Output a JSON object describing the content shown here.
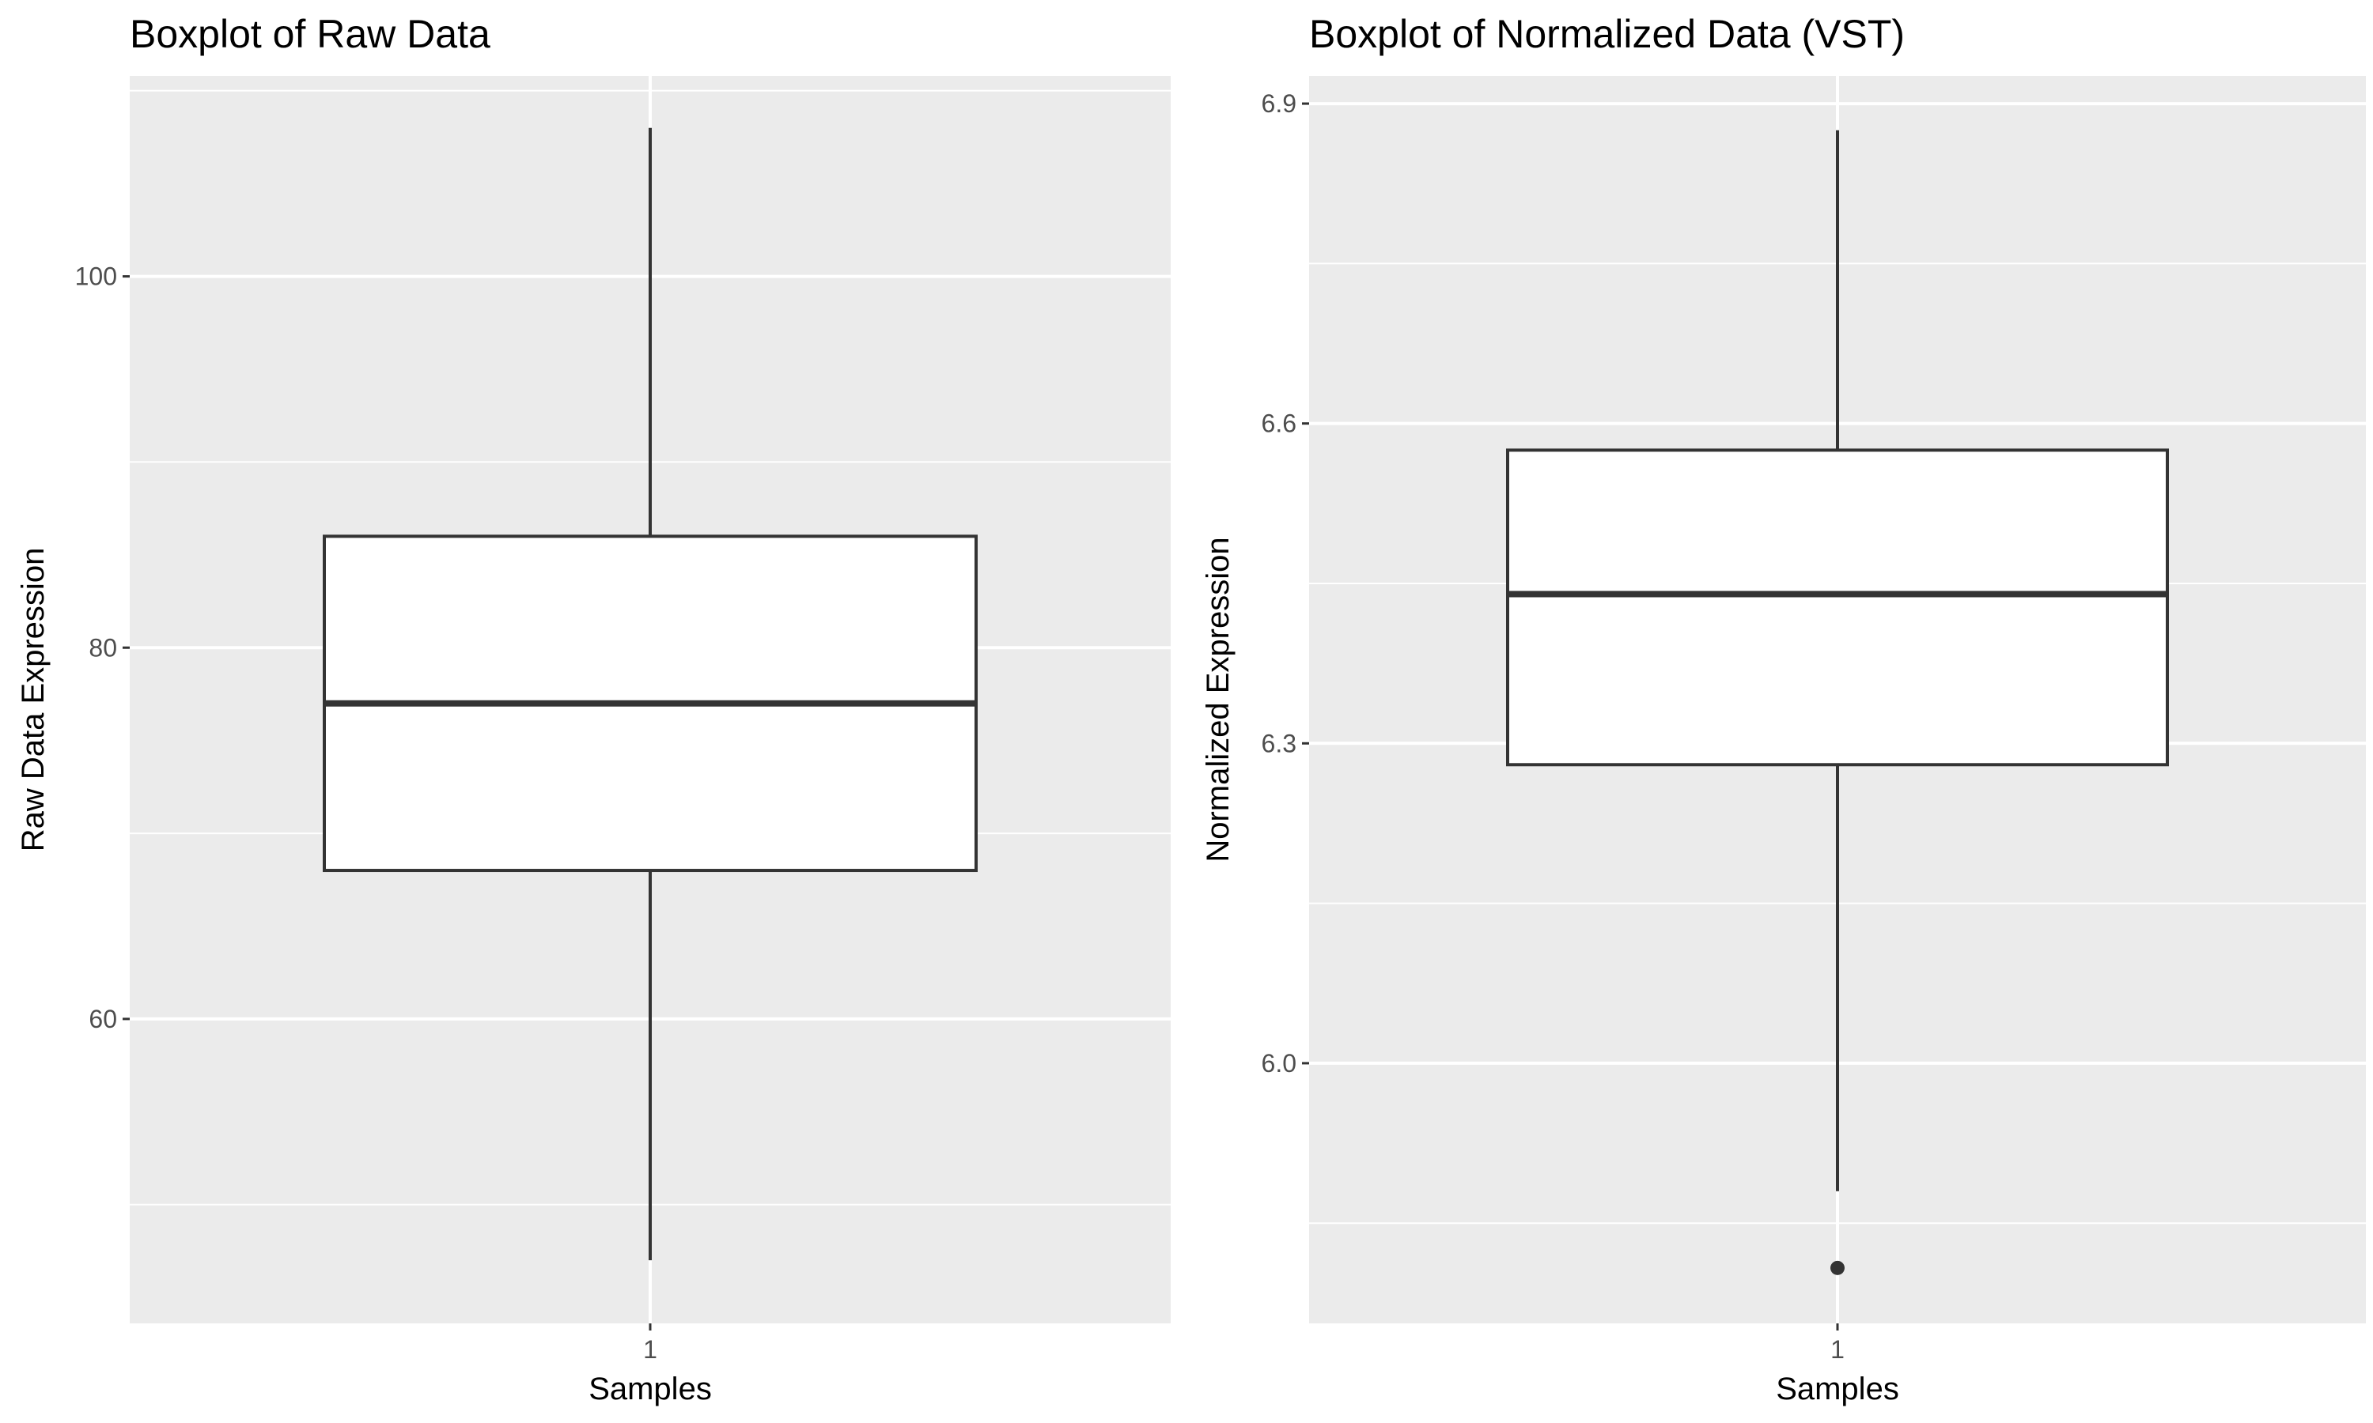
{
  "charts": [
    {
      "type": "boxplot",
      "title": "Boxplot of Raw Data",
      "xlabel": "Samples",
      "ylabel": "Raw Data Expression",
      "categories": [
        "1"
      ],
      "yticks": [
        60,
        80,
        100
      ],
      "ylim": [
        43.6,
        110.8
      ],
      "grid": true,
      "box": {
        "lower_whisker": 47,
        "q1": 68,
        "median": 77,
        "q3": 86,
        "upper_whisker": 108
      },
      "outliers": []
    },
    {
      "type": "boxplot",
      "title": "Boxplot of Normalized Data (VST)",
      "xlabel": "Samples",
      "ylabel": "Normalized Expression",
      "categories": [
        "1"
      ],
      "yticks": [
        "6.0",
        "6.3",
        "6.6",
        "6.9"
      ],
      "ylim": [
        5.756,
        6.926
      ],
      "grid": true,
      "box": {
        "lower_whisker": 5.88,
        "q1": 6.28,
        "median": 6.44,
        "q3": 6.575,
        "upper_whisker": 6.875
      },
      "outliers": [
        5.808
      ]
    }
  ]
}
